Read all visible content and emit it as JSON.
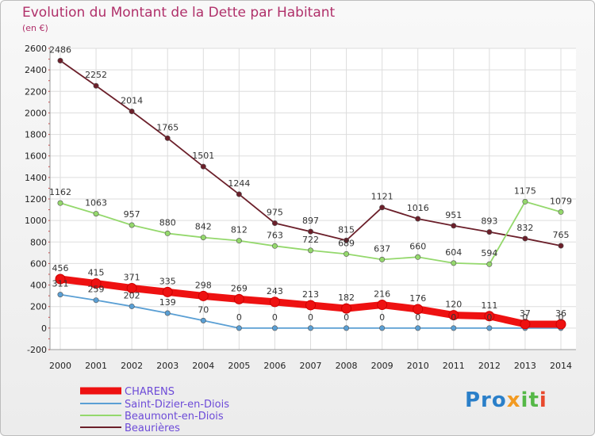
{
  "header": {
    "title": "Evolution du Montant de la Dette par Habitant",
    "unit": "(en €)"
  },
  "logo": {
    "text": "Proxiti",
    "parts": [
      "Pro",
      "x",
      "it",
      "i"
    ]
  },
  "chart_data": {
    "type": "line",
    "title": "Evolution du Montant de la Dette par Habitant",
    "ylabel": "(en €)",
    "x": [
      2000,
      2001,
      2002,
      2003,
      2004,
      2005,
      2006,
      2007,
      2008,
      2009,
      2010,
      2011,
      2012,
      2013,
      2014
    ],
    "ylim": [
      -200,
      2600
    ],
    "yticks": [
      -200,
      0,
      200,
      400,
      600,
      800,
      1000,
      1200,
      1400,
      1600,
      1800,
      2000,
      2200,
      2400,
      2600
    ],
    "grid": true,
    "legend_position": "bottom-left",
    "series": [
      {
        "name": "CHARENS",
        "color": "#ee1111",
        "values": [
          456,
          415,
          371,
          335,
          298,
          269,
          243,
          213,
          182,
          216,
          176,
          120,
          111,
          37,
          36
        ],
        "labels": [
          "456",
          "415",
          "371",
          "335",
          "298",
          "269",
          "243",
          "213",
          "182",
          "216",
          "176",
          "120",
          "111",
          "37",
          "36"
        ]
      },
      {
        "name": "Saint-Dizier-en-Diois",
        "color": "#5a9fd4",
        "values": [
          311,
          259,
          202,
          139,
          70,
          0,
          0,
          0,
          0,
          0,
          0,
          0,
          0,
          0,
          0
        ],
        "labels": [
          "311",
          "259",
          "202",
          "139",
          "70",
          "0",
          "0",
          "0",
          "0",
          "0",
          "0",
          "0",
          "0",
          "0",
          "0"
        ]
      },
      {
        "name": "Beaumont-en-Diois",
        "color": "#94d86c",
        "values": [
          1162,
          1063,
          957,
          880,
          842,
          812,
          763,
          722,
          689,
          637,
          660,
          604,
          594,
          1175,
          1079
        ],
        "labels": [
          "1162",
          "1063",
          "957",
          "880",
          "842",
          "812",
          "763",
          "722",
          "689",
          "637",
          "660",
          "604",
          "594",
          "1175",
          "1079"
        ]
      },
      {
        "name": "Beaurières",
        "color": "#6b1f2a",
        "values": [
          2486,
          2252,
          2014,
          1765,
          1501,
          1244,
          975,
          897,
          815,
          1121,
          1016,
          951,
          893,
          832,
          765
        ],
        "labels": [
          "2486",
          "2252",
          "2014",
          "1765",
          "1501",
          "1244",
          "975",
          "897",
          "815",
          "1121",
          "1016",
          "951",
          "893",
          "832",
          "765"
        ]
      }
    ]
  }
}
